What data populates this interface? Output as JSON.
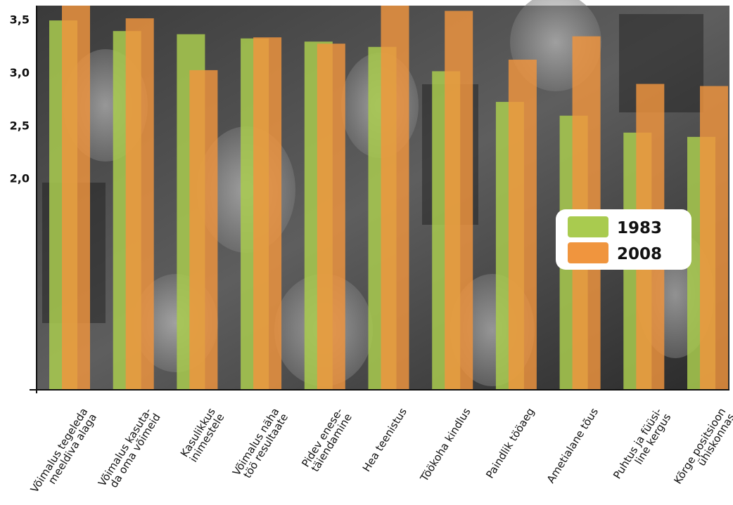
{
  "chart_data": {
    "type": "bar",
    "title": "",
    "xlabel": "",
    "ylabel": "",
    "ylim": [
      0,
      3.63
    ],
    "y_ticks": [
      "2,0",
      "2,5",
      "3,0",
      "3,5"
    ],
    "y_tick_values": [
      2.0,
      2.5,
      3.0,
      3.5
    ],
    "categories": [
      [
        "Võimalus tegeleda",
        "meeldiva alaga"
      ],
      [
        "Võimalus kasuta-",
        "da oma võimeid"
      ],
      [
        "Kasulikkus",
        "inimestele"
      ],
      [
        "Võimalus näha",
        "töö resultaate"
      ],
      [
        "Pidev enese-",
        "täiendamine"
      ],
      [
        "Hea teenistus"
      ],
      [
        "Töökoha kindlus"
      ],
      [
        "Paindlik tööaeg"
      ],
      [
        "Ametialane tõus"
      ],
      [
        "Puhtus ja füüsi-",
        "line kergus"
      ],
      [
        "Kõrge positsioon",
        "ühiskonnas"
      ]
    ],
    "series": [
      {
        "name": "1983",
        "color": "#a9cb4f",
        "values": [
          3.49,
          3.39,
          3.36,
          3.32,
          3.29,
          3.24,
          3.01,
          2.72,
          2.59,
          2.43,
          2.39
        ]
      },
      {
        "name": "2008",
        "color": "#f0953e",
        "values": [
          3.63,
          3.51,
          3.02,
          3.33,
          3.27,
          3.63,
          3.58,
          3.12,
          3.34,
          2.89,
          2.87
        ]
      }
    ],
    "legend": {
      "placement": "right",
      "entries": [
        "1983",
        "2008"
      ]
    },
    "grid": false,
    "background": "black-and-white crowd photograph",
    "colors": {
      "bar_1983": "#a9cb4f",
      "bar_2008": "#f0953e",
      "axis": "#111111",
      "legend_box": "#ffffff"
    }
  }
}
